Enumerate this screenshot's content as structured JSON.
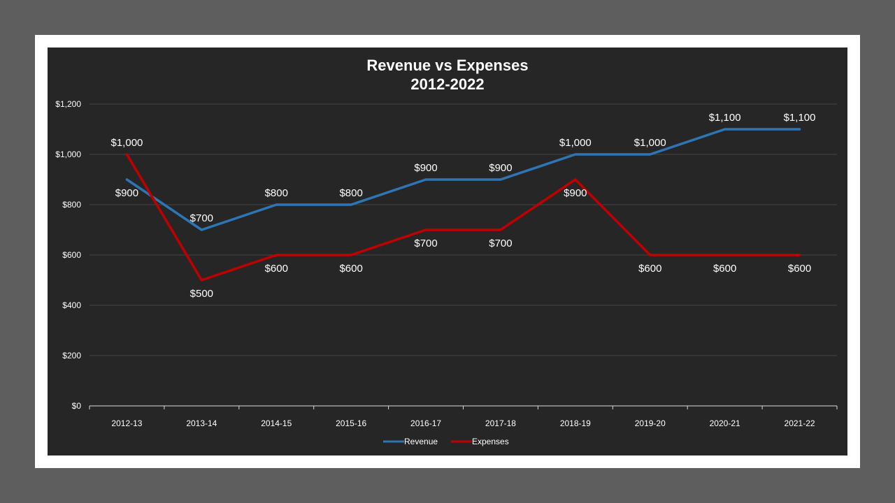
{
  "chart_data": {
    "type": "line",
    "title": "Revenue vs Expenses",
    "subtitle": "2012-2022",
    "categories": [
      "2012-13",
      "2013-14",
      "2014-15",
      "2015-16",
      "2016-17",
      "2017-18",
      "2018-19",
      "2019-20",
      "2020-21",
      "2021-22"
    ],
    "series": [
      {
        "name": "Revenue",
        "color": "#2e75b6",
        "values": [
          900,
          700,
          800,
          800,
          900,
          900,
          1000,
          1000,
          1100,
          1100
        ],
        "labels": [
          "$900",
          "$700",
          "$800",
          "$800",
          "$900",
          "$900",
          "$1,000",
          "$1,000",
          "$1,100",
          "$1,100"
        ]
      },
      {
        "name": "Expenses",
        "color": "#c00000",
        "values": [
          1000,
          500,
          600,
          600,
          700,
          700,
          900,
          600,
          600,
          600
        ],
        "labels": [
          "$1,000",
          "$500",
          "$600",
          "$600",
          "$700",
          "$700",
          "$900",
          "$600",
          "$600",
          "$600"
        ]
      }
    ],
    "ylim": [
      0,
      1200
    ],
    "yticks": [
      0,
      200,
      400,
      600,
      800,
      1000,
      1200
    ],
    "ytick_labels": [
      "$0",
      "$200",
      "$400",
      "$600",
      "$800",
      "$1,000",
      "$1,200"
    ],
    "grid": true,
    "legend": "bottom"
  }
}
